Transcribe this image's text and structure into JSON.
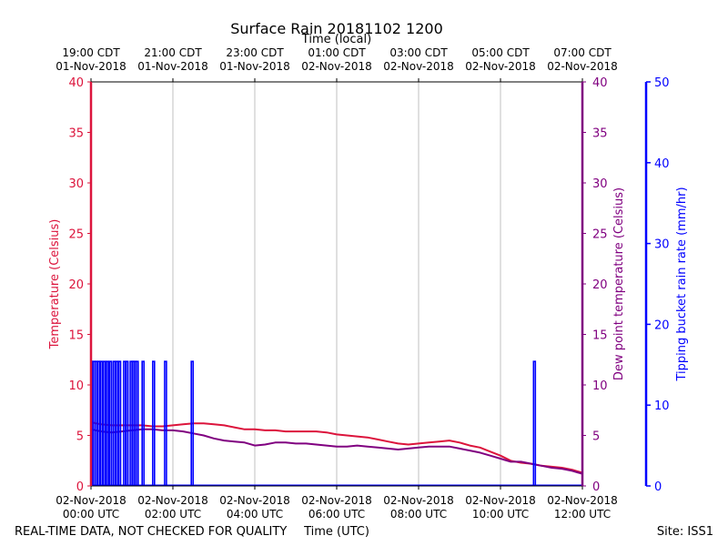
{
  "chart_data": {
    "type": "line",
    "title": "Surface Rain 20181102 1200",
    "top_axis_label": "Time (local)",
    "xlabel": "Time (UTC)",
    "footer_left": "REAL-TIME DATA, NOT CHECKED FOR QUALITY",
    "footer_right": "Site: ISS1",
    "x_range_hours": [
      0,
      12
    ],
    "x_ticks": [
      {
        "h": 0,
        "utc_date": "02-Nov-2018",
        "utc_time": "00:00 UTC",
        "local_time": "19:00 CDT",
        "local_date": "01-Nov-2018"
      },
      {
        "h": 2,
        "utc_date": "02-Nov-2018",
        "utc_time": "02:00 UTC",
        "local_time": "21:00 CDT",
        "local_date": "01-Nov-2018"
      },
      {
        "h": 4,
        "utc_date": "02-Nov-2018",
        "utc_time": "04:00 UTC",
        "local_time": "23:00 CDT",
        "local_date": "01-Nov-2018"
      },
      {
        "h": 6,
        "utc_date": "02-Nov-2018",
        "utc_time": "06:00 UTC",
        "local_time": "01:00 CDT",
        "local_date": "02-Nov-2018"
      },
      {
        "h": 8,
        "utc_date": "02-Nov-2018",
        "utc_time": "08:00 UTC",
        "local_time": "03:00 CDT",
        "local_date": "02-Nov-2018"
      },
      {
        "h": 10,
        "utc_date": "02-Nov-2018",
        "utc_time": "10:00 UTC",
        "local_time": "05:00 CDT",
        "local_date": "02-Nov-2018"
      },
      {
        "h": 12,
        "utc_date": "02-Nov-2018",
        "utc_time": "12:00 UTC",
        "local_time": "07:00 CDT",
        "local_date": "02-Nov-2018"
      }
    ],
    "axes": {
      "left": {
        "label": "Temperature (Celsius)",
        "ylim": [
          0,
          40
        ],
        "ticks": [
          "0",
          "5",
          "10",
          "15",
          "20",
          "25",
          "30",
          "35",
          "40"
        ],
        "color": "#dc143c"
      },
      "right1": {
        "label": "Dew point temperature (Celsius)",
        "ylim": [
          0,
          40
        ],
        "ticks": [
          "0",
          "5",
          "10",
          "15",
          "20",
          "25",
          "30",
          "35",
          "40"
        ],
        "color": "#800080"
      },
      "right2": {
        "label": "Tipping bucket rain rate (mm/hr)",
        "ylim": [
          0,
          50
        ],
        "ticks": [
          "0",
          "10",
          "20",
          "30",
          "40",
          "50"
        ],
        "color": "#0000ff"
      }
    },
    "series": [
      {
        "name": "Temperature",
        "axis": "left",
        "color": "#dc143c",
        "x": [
          0,
          0.25,
          0.5,
          0.75,
          1.0,
          1.25,
          1.5,
          1.75,
          2.0,
          2.25,
          2.5,
          2.75,
          3.0,
          3.25,
          3.5,
          3.75,
          4.0,
          4.25,
          4.5,
          4.75,
          5.0,
          5.25,
          5.5,
          5.75,
          6.0,
          6.25,
          6.5,
          6.75,
          7.0,
          7.25,
          7.5,
          7.75,
          8.0,
          8.25,
          8.5,
          8.75,
          9.0,
          9.25,
          9.5,
          9.75,
          10.0,
          10.25,
          10.5,
          10.75,
          11.0,
          11.25,
          11.5,
          11.75,
          12.0
        ],
        "values": [
          6.3,
          6.1,
          6.0,
          6.0,
          6.0,
          6.0,
          5.9,
          5.9,
          6.0,
          6.1,
          6.2,
          6.2,
          6.1,
          6.0,
          5.8,
          5.6,
          5.6,
          5.5,
          5.5,
          5.4,
          5.4,
          5.4,
          5.4,
          5.3,
          5.1,
          5.0,
          4.9,
          4.8,
          4.6,
          4.4,
          4.2,
          4.1,
          4.2,
          4.3,
          4.4,
          4.5,
          4.3,
          4.0,
          3.8,
          3.4,
          3.0,
          2.5,
          2.3,
          2.2,
          2.0,
          1.9,
          1.8,
          1.6,
          1.3
        ]
      },
      {
        "name": "Dew point temperature",
        "axis": "right1",
        "color": "#800080",
        "x": [
          0,
          0.25,
          0.5,
          0.75,
          1.0,
          1.25,
          1.5,
          1.75,
          2.0,
          2.25,
          2.5,
          2.75,
          3.0,
          3.25,
          3.5,
          3.75,
          4.0,
          4.25,
          4.5,
          4.75,
          5.0,
          5.25,
          5.5,
          5.75,
          6.0,
          6.25,
          6.5,
          6.75,
          7.0,
          7.25,
          7.5,
          7.75,
          8.0,
          8.25,
          8.5,
          8.75,
          9.0,
          9.25,
          9.5,
          9.75,
          10.0,
          10.25,
          10.5,
          10.75,
          11.0,
          11.25,
          11.5,
          11.75,
          12.0
        ],
        "values": [
          5.6,
          5.4,
          5.3,
          5.4,
          5.5,
          5.6,
          5.6,
          5.5,
          5.5,
          5.4,
          5.2,
          5.0,
          4.7,
          4.5,
          4.4,
          4.3,
          4.0,
          4.1,
          4.3,
          4.3,
          4.2,
          4.2,
          4.1,
          4.0,
          3.9,
          3.9,
          4.0,
          3.9,
          3.8,
          3.7,
          3.6,
          3.7,
          3.8,
          3.9,
          3.9,
          3.9,
          3.7,
          3.5,
          3.3,
          3.0,
          2.7,
          2.4,
          2.4,
          2.2,
          2.0,
          1.8,
          1.7,
          1.5,
          1.2
        ]
      }
    ],
    "rain": {
      "name": "Tipping bucket rain rate",
      "axis": "right2",
      "color": "#0000ff",
      "spike_value": 15.4,
      "spike_hours": [
        0.02,
        0.07,
        0.13,
        0.19,
        0.25,
        0.33,
        0.4,
        0.47,
        0.56,
        0.63,
        0.7,
        0.82,
        0.88,
        0.98,
        1.03,
        1.07,
        1.13,
        1.27,
        1.53,
        1.82,
        2.47,
        10.83
      ]
    }
  }
}
